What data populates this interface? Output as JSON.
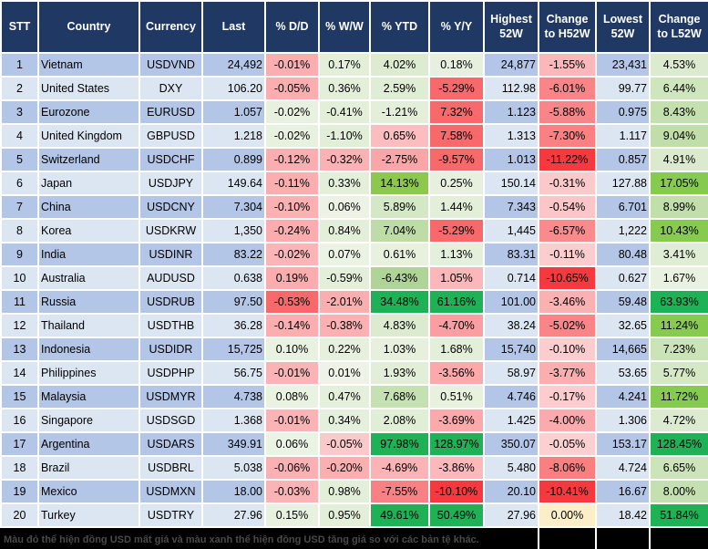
{
  "table": {
    "columns": [
      {
        "key": "stt",
        "label": "STT"
      },
      {
        "key": "country",
        "label": "Country"
      },
      {
        "key": "currency",
        "label": "Currency"
      },
      {
        "key": "last",
        "label": "Last"
      },
      {
        "key": "dd",
        "label": "% D/D"
      },
      {
        "key": "ww",
        "label": "% W/W"
      },
      {
        "key": "ytd",
        "label": "% YTD"
      },
      {
        "key": "yy",
        "label": "% Y/Y"
      },
      {
        "key": "high",
        "label": "Highest 52W"
      },
      {
        "key": "chg_h",
        "label": "Change to H52W"
      },
      {
        "key": "low",
        "label": "Lowest 52W"
      },
      {
        "key": "chg_l",
        "label": "Change to L52W"
      }
    ],
    "rows": [
      {
        "stt": "1",
        "country": "Vietnam",
        "currency": "USDVND",
        "last": "24,492",
        "dd": {
          "v": "-0.01%",
          "c": "#FBAEB0"
        },
        "ww": {
          "v": "0.17%",
          "c": "#E4EFDA"
        },
        "ytd": {
          "v": "4.02%",
          "c": "#DDEBD1"
        },
        "yy": {
          "v": "0.18%",
          "c": "#E7F0DF"
        },
        "high": "24,877",
        "chg_h": {
          "v": "-1.55%",
          "c": "#FBB7B9"
        },
        "low": "23,431",
        "chg_l": {
          "v": "4.53%",
          "c": "#DCEBD0"
        }
      },
      {
        "stt": "2",
        "country": "United States",
        "currency": "DXY",
        "last": "106.20",
        "dd": {
          "v": "-0.05%",
          "c": "#FBAEB0"
        },
        "ww": {
          "v": "0.36%",
          "c": "#E4EFDA"
        },
        "ytd": {
          "v": "2.59%",
          "c": "#E0EDD5"
        },
        "yy": {
          "v": "-5.29%",
          "c": "#F8696B"
        },
        "high": "112.98",
        "chg_h": {
          "v": "-6.01%",
          "c": "#FA8588"
        },
        "low": "99.77",
        "chg_l": {
          "v": "6.44%",
          "c": "#CFE5BD"
        }
      },
      {
        "stt": "3",
        "country": "Eurozone",
        "currency": "EURUSD",
        "last": "1.057",
        "dd": {
          "v": "-0.02%",
          "c": "#E8F1E0"
        },
        "ww": {
          "v": "-0.41%",
          "c": "#E4EFDA"
        },
        "ytd": {
          "v": "-1.21%",
          "c": "#E4EFDA"
        },
        "yy": {
          "v": "7.32%",
          "c": "#F8696B"
        },
        "high": "1.123",
        "chg_h": {
          "v": "-5.88%",
          "c": "#FA8588"
        },
        "low": "0.975",
        "chg_l": {
          "v": "8.43%",
          "c": "#C4E0AE"
        }
      },
      {
        "stt": "4",
        "country": "United Kingdom",
        "currency": "GBPUSD",
        "last": "1.218",
        "dd": {
          "v": "-0.02%",
          "c": "#E8F1E0"
        },
        "ww": {
          "v": "-1.10%",
          "c": "#E2EED8"
        },
        "ytd": {
          "v": "0.65%",
          "c": "#FBBDBF"
        },
        "yy": {
          "v": "7.58%",
          "c": "#F8696B"
        },
        "high": "1.313",
        "chg_h": {
          "v": "-7.30%",
          "c": "#F98183"
        },
        "low": "1.117",
        "chg_l": {
          "v": "9.04%",
          "c": "#C1DEAA"
        }
      },
      {
        "stt": "5",
        "country": "Switzerland",
        "currency": "USDCHF",
        "last": "0.899",
        "dd": {
          "v": "-0.12%",
          "c": "#FBAEB0"
        },
        "ww": {
          "v": "-0.32%",
          "c": "#FBB2B4"
        },
        "ytd": {
          "v": "-2.75%",
          "c": "#FAA5A7"
        },
        "yy": {
          "v": "-9.57%",
          "c": "#F8696B"
        },
        "high": "1.013",
        "chg_h": {
          "v": "-11.22%",
          "c": "#F43A3E"
        },
        "low": "0.857",
        "chg_l": {
          "v": "4.91%",
          "c": "#DBEACE"
        }
      },
      {
        "stt": "6",
        "country": "Japan",
        "currency": "USDJPY",
        "last": "149.64",
        "dd": {
          "v": "-0.11%",
          "c": "#FBAEB0"
        },
        "ww": {
          "v": "0.33%",
          "c": "#E4EFDA"
        },
        "ytd": {
          "v": "14.13%",
          "c": "#8CC84B"
        },
        "yy": {
          "v": "0.25%",
          "c": "#E7F0DF"
        },
        "high": "150.14",
        "chg_h": {
          "v": "-0.31%",
          "c": "#FCC9CB"
        },
        "low": "127.88",
        "chg_l": {
          "v": "17.05%",
          "c": "#86CB4F"
        }
      },
      {
        "stt": "7",
        "country": "China",
        "currency": "USDCNY",
        "last": "7.304",
        "dd": {
          "v": "-0.10%",
          "c": "#FBB0B2"
        },
        "ww": {
          "v": "0.06%",
          "c": "#ECF3E5"
        },
        "ytd": {
          "v": "5.89%",
          "c": "#D4E8C5"
        },
        "yy": {
          "v": "1.44%",
          "c": "#E3EFD9"
        },
        "high": "7.343",
        "chg_h": {
          "v": "-0.54%",
          "c": "#FCC5C7"
        },
        "low": "6.701",
        "chg_l": {
          "v": "8.99%",
          "c": "#C2DEAB"
        }
      },
      {
        "stt": "8",
        "country": "Korea",
        "currency": "USDKRW",
        "last": "1,350",
        "dd": {
          "v": "-0.24%",
          "c": "#FBACAE"
        },
        "ww": {
          "v": "0.84%",
          "c": "#E4EFDA"
        },
        "ytd": {
          "v": "7.04%",
          "c": "#BEDCA6"
        },
        "yy": {
          "v": "-5.29%",
          "c": "#F8696B"
        },
        "high": "1,445",
        "chg_h": {
          "v": "-6.57%",
          "c": "#FA8B8D"
        },
        "low": "1,222",
        "chg_l": {
          "v": "10.43%",
          "c": "#86CB4F"
        }
      },
      {
        "stt": "9",
        "country": "India",
        "currency": "USDINR",
        "last": "83.22",
        "dd": {
          "v": "-0.02%",
          "c": "#FBB5B7"
        },
        "ww": {
          "v": "0.07%",
          "c": "#EBF3E4"
        },
        "ytd": {
          "v": "0.61%",
          "c": "#E7F1DE"
        },
        "yy": {
          "v": "1.13%",
          "c": "#E5F0DC"
        },
        "high": "83.31",
        "chg_h": {
          "v": "-0.11%",
          "c": "#FCCDCF"
        },
        "low": "80.48",
        "chg_l": {
          "v": "3.41%",
          "c": "#E0EDD5"
        }
      },
      {
        "stt": "10",
        "country": "Australia",
        "currency": "AUDUSD",
        "last": "0.638",
        "dd": {
          "v": "0.19%",
          "c": "#FBACAE"
        },
        "ww": {
          "v": "-0.59%",
          "c": "#E4EFDA"
        },
        "ytd": {
          "v": "-6.43%",
          "c": "#AFD495"
        },
        "yy": {
          "v": "1.05%",
          "c": "#FBB7B9"
        },
        "high": "0.714",
        "chg_h": {
          "v": "-10.65%",
          "c": "#F43A3E"
        },
        "low": "0.627",
        "chg_l": {
          "v": "1.67%",
          "c": "#E9F2E1"
        }
      },
      {
        "stt": "11",
        "country": "Russia",
        "currency": "USDRUB",
        "last": "97.50",
        "dd": {
          "v": "-0.53%",
          "c": "#F8696B"
        },
        "ww": {
          "v": "-2.01%",
          "c": "#FBAEB0"
        },
        "ytd": {
          "v": "34.48%",
          "c": "#1FB155"
        },
        "yy": {
          "v": "61.16%",
          "c": "#1FB155"
        },
        "high": "101.00",
        "chg_h": {
          "v": "-3.46%",
          "c": "#FBB0B2"
        },
        "low": "59.48",
        "chg_l": {
          "v": "63.93%",
          "c": "#1FB155"
        }
      },
      {
        "stt": "12",
        "country": "Thailand",
        "currency": "USDTHB",
        "last": "36.28",
        "dd": {
          "v": "-0.14%",
          "c": "#FBAEB0"
        },
        "ww": {
          "v": "-0.38%",
          "c": "#FBB1B3"
        },
        "ytd": {
          "v": "4.83%",
          "c": "#DCEBD0"
        },
        "yy": {
          "v": "-4.70%",
          "c": "#FA9FA1"
        },
        "high": "38.24",
        "chg_h": {
          "v": "-5.02%",
          "c": "#F98588"
        },
        "low": "32.65",
        "chg_l": {
          "v": "11.24%",
          "c": "#86CB4F"
        }
      },
      {
        "stt": "13",
        "country": "Indonesia",
        "currency": "USDIDR",
        "last": "15,725",
        "dd": {
          "v": "0.10%",
          "c": "#E9F2E1"
        },
        "ww": {
          "v": "0.22%",
          "c": "#E6F0DD"
        },
        "ytd": {
          "v": "1.03%",
          "c": "#E6F0DD"
        },
        "yy": {
          "v": "1.68%",
          "c": "#E3EFD9"
        },
        "high": "15,740",
        "chg_h": {
          "v": "-0.10%",
          "c": "#FCCDCF"
        },
        "low": "14,665",
        "chg_l": {
          "v": "7.23%",
          "c": "#CAE3B7"
        }
      },
      {
        "stt": "14",
        "country": "Philippines",
        "currency": "USDPHP",
        "last": "56.75",
        "dd": {
          "v": "-0.01%",
          "c": "#FBB4B6"
        },
        "ww": {
          "v": "0.01%",
          "c": "#EDF4E7"
        },
        "ytd": {
          "v": "1.93%",
          "c": "#E2EED7"
        },
        "yy": {
          "v": "-3.56%",
          "c": "#FBA9AB"
        },
        "high": "58.97",
        "chg_h": {
          "v": "-3.77%",
          "c": "#FBAEB0"
        },
        "low": "53.65",
        "chg_l": {
          "v": "5.77%",
          "c": "#D4E8C5"
        }
      },
      {
        "stt": "15",
        "country": "Malaysia",
        "currency": "USDMYR",
        "last": "4.738",
        "dd": {
          "v": "0.08%",
          "c": "#EAF2E2"
        },
        "ww": {
          "v": "0.47%",
          "c": "#E5F0DC"
        },
        "ytd": {
          "v": "7.68%",
          "c": "#C6E1B1"
        },
        "yy": {
          "v": "0.51%",
          "c": "#E7F1DE"
        },
        "high": "4.746",
        "chg_h": {
          "v": "-0.17%",
          "c": "#FCCCCE"
        },
        "low": "4.241",
        "chg_l": {
          "v": "11.72%",
          "c": "#86CB4F"
        }
      },
      {
        "stt": "16",
        "country": "Singapore",
        "currency": "USDSGD",
        "last": "1.368",
        "dd": {
          "v": "-0.01%",
          "c": "#FBB4B6"
        },
        "ww": {
          "v": "0.34%",
          "c": "#E5F0DC"
        },
        "ytd": {
          "v": "2.08%",
          "c": "#E1EED6"
        },
        "yy": {
          "v": "-3.69%",
          "c": "#FBA9AB"
        },
        "high": "1.425",
        "chg_h": {
          "v": "-4.00%",
          "c": "#FBABAD"
        },
        "low": "1.306",
        "chg_l": {
          "v": "4.72%",
          "c": "#DCEBD0"
        }
      },
      {
        "stt": "17",
        "country": "Argentina",
        "currency": "USDARS",
        "last": "349.91",
        "dd": {
          "v": "0.06%",
          "c": "#EBF3E4"
        },
        "ww": {
          "v": "-0.05%",
          "c": "#FCC9CB"
        },
        "ytd": {
          "v": "97.98%",
          "c": "#1FB155"
        },
        "yy": {
          "v": "128.97%",
          "c": "#1FB155"
        },
        "high": "350.07",
        "chg_h": {
          "v": "-0.05%",
          "c": "#FCCFD1"
        },
        "low": "153.17",
        "chg_l": {
          "v": "128.45%",
          "c": "#1FB155"
        }
      },
      {
        "stt": "18",
        "country": "Brazil",
        "currency": "USDBRL",
        "last": "5.038",
        "dd": {
          "v": "-0.06%",
          "c": "#FBB1B3"
        },
        "ww": {
          "v": "-0.20%",
          "c": "#FBAFB1"
        },
        "ytd": {
          "v": "-4.69%",
          "c": "#FBB3B5"
        },
        "yy": {
          "v": "-3.86%",
          "c": "#FBB9BB"
        },
        "high": "5.480",
        "chg_h": {
          "v": "-8.06%",
          "c": "#F97F81"
        },
        "low": "4.724",
        "chg_l": {
          "v": "6.65%",
          "c": "#CDE4BA"
        }
      },
      {
        "stt": "19",
        "country": "Mexico",
        "currency": "USDMXN",
        "last": "18.00",
        "dd": {
          "v": "-0.03%",
          "c": "#FBB3B5"
        },
        "ww": {
          "v": "0.98%",
          "c": "#E4EFDA"
        },
        "ytd": {
          "v": "-7.55%",
          "c": "#FA8183"
        },
        "yy": {
          "v": "-10.10%",
          "c": "#F43A3E"
        },
        "high": "20.10",
        "chg_h": {
          "v": "-10.41%",
          "c": "#F43A3E"
        },
        "low": "16.67",
        "chg_l": {
          "v": "8.00%",
          "c": "#C5E0B0"
        }
      },
      {
        "stt": "20",
        "country": "Turkey",
        "currency": "USDTRY",
        "last": "27.96",
        "dd": {
          "v": "0.15%",
          "c": "#E8F1E0"
        },
        "ww": {
          "v": "0.95%",
          "c": "#E4EFDA"
        },
        "ytd": {
          "v": "49.61%",
          "c": "#1FB155"
        },
        "yy": {
          "v": "50.49%",
          "c": "#1FB155"
        },
        "high": "27.96",
        "chg_h": {
          "v": "0.00%",
          "c": "#FBEEC9"
        },
        "low": "18.42",
        "chg_l": {
          "v": "51.84%",
          "c": "#1FB155"
        }
      }
    ]
  },
  "footer": {
    "note": "Màu đỏ thể hiện đồng USD mất giá và màu xanh thể hiện đồng USD tăng giá so với các bản tệ khác."
  },
  "colors": {
    "header_bg": "#1F3864",
    "header_text": "#FFFFFF",
    "row_odd": "#B3C6E7",
    "row_even": "#DCE6F3",
    "strong_red": "#F43A3E",
    "red": "#F8696B",
    "strong_green": "#1FB155",
    "lime_green": "#86CB4F",
    "neutral_cream": "#FBEEC9",
    "footer_bg": "#000000",
    "footer_text": "#4A4A4A"
  }
}
